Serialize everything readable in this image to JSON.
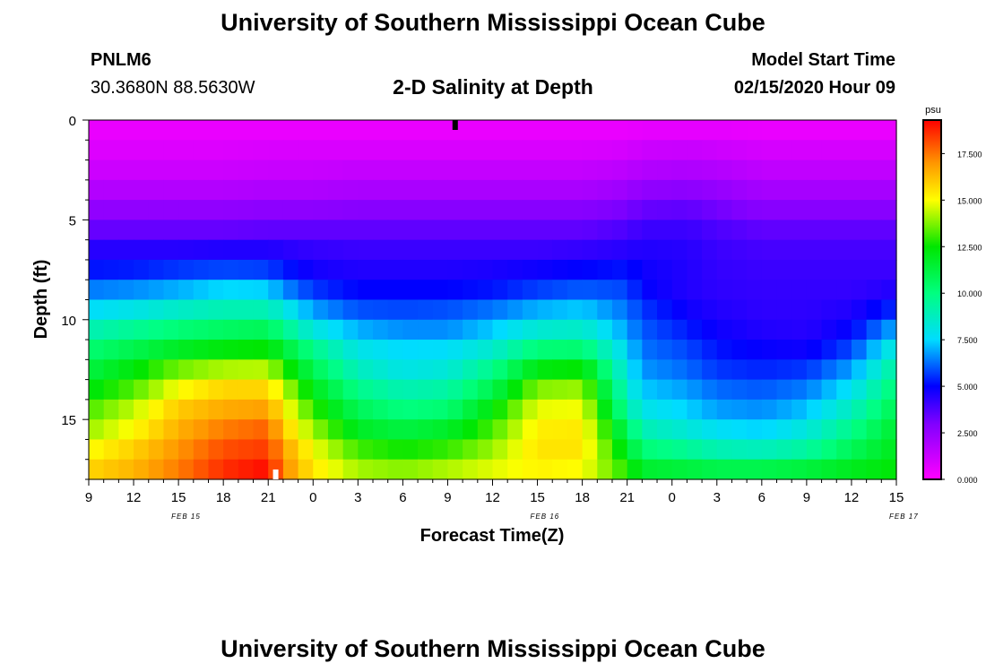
{
  "header": {
    "title": "University of Southern Mississippi Ocean Cube",
    "station_id": "PNLM6",
    "station_coords": "30.3680N 88.5630W",
    "subtitle": "2-D Salinity at Depth",
    "model_label": "Model Start Time",
    "model_time": "02/15/2020 Hour 09"
  },
  "footer": {
    "title": "University of Southern Mississippi Ocean Cube"
  },
  "chart_data": {
    "type": "heatmap",
    "xlabel": "Forecast Time(Z)",
    "ylabel": "Depth (ft)",
    "x_ticks": [
      "9",
      "12",
      "15",
      "18",
      "21",
      "0",
      "3",
      "6",
      "9",
      "12",
      "15",
      "18",
      "21",
      "0",
      "3",
      "6",
      "9",
      "12",
      "15"
    ],
    "date_labels": [
      {
        "text": "FEB 15",
        "hours_from_start": 6.5
      },
      {
        "text": "FEB 16",
        "hours_from_start": 30.5
      },
      {
        "text": "FEB 17",
        "hours_from_start": 54.5
      }
    ],
    "x_range_hours": [
      0,
      54
    ],
    "x_start": "02/15/2020 09Z",
    "y_ticks": [
      0,
      5,
      10,
      15
    ],
    "ylim": [
      0,
      18
    ],
    "colorbar": {
      "unit": "psu",
      "ticks": [
        "17.500",
        "15.000",
        "12.500",
        "10.000",
        "7.500",
        "5.000",
        "2.500",
        "0.000"
      ],
      "range": [
        0,
        19.3
      ]
    },
    "marker_top_hours": 24.5,
    "marker_bottom_hours": 12.5,
    "depth_levels_ft": [
      0.5,
      1.5,
      2.5,
      3.5,
      4.5,
      5.5,
      6.5,
      7.5,
      8.5,
      9.5,
      10.5,
      11.5,
      12.5,
      13.5,
      14.5,
      15.5,
      16.5,
      17.5
    ],
    "time_hours": [
      0,
      3,
      6,
      9,
      12,
      13,
      15,
      18,
      21,
      24,
      27,
      30,
      33,
      36,
      37,
      40,
      42,
      45,
      48,
      51,
      54
    ],
    "salinity_psu": [
      [
        0.5,
        0.5,
        0.5,
        0.5,
        0.5,
        0.5,
        0.5,
        0.5,
        0.5,
        0.5,
        0.5,
        0.5,
        0.5,
        0.5,
        0.6,
        0.6,
        0.6,
        0.5,
        0.5,
        0.5,
        0.5
      ],
      [
        0.8,
        0.8,
        0.8,
        0.8,
        0.9,
        0.9,
        0.9,
        0.9,
        0.9,
        0.9,
        0.9,
        0.9,
        0.9,
        1.0,
        1.2,
        1.3,
        1.2,
        1.0,
        1.0,
        1.0,
        1.0
      ],
      [
        1.2,
        1.2,
        1.2,
        1.2,
        1.3,
        1.3,
        1.3,
        1.4,
        1.4,
        1.4,
        1.4,
        1.4,
        1.4,
        1.6,
        1.8,
        1.9,
        1.8,
        1.5,
        1.5,
        1.5,
        1.5
      ],
      [
        1.8,
        1.8,
        1.8,
        1.8,
        1.9,
        1.9,
        1.9,
        2.0,
        2.0,
        2.0,
        2.0,
        2.0,
        2.0,
        2.3,
        2.6,
        2.7,
        2.5,
        2.1,
        2.1,
        2.1,
        2.1
      ],
      [
        2.6,
        2.6,
        2.6,
        2.6,
        2.7,
        2.7,
        2.7,
        2.8,
        2.8,
        2.8,
        2.8,
        2.8,
        2.8,
        3.1,
        3.4,
        3.5,
        3.2,
        2.8,
        2.8,
        2.8,
        2.8
      ],
      [
        3.4,
        3.4,
        3.4,
        3.4,
        3.5,
        3.5,
        3.5,
        3.5,
        3.5,
        3.5,
        3.5,
        3.5,
        3.5,
        3.8,
        4.1,
        4.1,
        3.8,
        3.5,
        3.5,
        3.5,
        3.5
      ],
      [
        4.4,
        4.4,
        4.4,
        4.5,
        4.5,
        4.4,
        4.2,
        4.1,
        4.1,
        4.1,
        4.1,
        4.1,
        4.2,
        4.4,
        4.5,
        4.4,
        4.1,
        3.9,
        3.9,
        3.9,
        3.9
      ],
      [
        5.2,
        5.3,
        5.6,
        5.8,
        5.7,
        5.3,
        4.7,
        4.5,
        4.5,
        4.5,
        4.6,
        4.8,
        5.0,
        5.2,
        4.8,
        4.5,
        4.2,
        4.1,
        4.1,
        4.1,
        4.1
      ],
      [
        6.4,
        6.6,
        7.0,
        7.5,
        7.4,
        6.6,
        5.6,
        5.0,
        5.0,
        5.0,
        5.2,
        5.7,
        6.0,
        5.8,
        5.0,
        4.5,
        4.3,
        4.2,
        4.2,
        4.2,
        4.5
      ],
      [
        7.6,
        8.0,
        8.6,
        9.0,
        9.0,
        8.2,
        6.8,
        5.9,
        5.8,
        5.9,
        6.3,
        7.0,
        7.3,
        6.3,
        5.6,
        4.8,
        4.5,
        4.3,
        4.3,
        4.5,
        5.5
      ],
      [
        9.0,
        9.6,
        10.2,
        10.6,
        10.8,
        9.8,
        8.2,
        7.0,
        6.6,
        6.6,
        7.3,
        8.4,
        8.6,
        6.8,
        6.0,
        5.3,
        4.8,
        4.5,
        4.4,
        5.0,
        7.0
      ],
      [
        10.3,
        11.0,
        11.8,
        12.3,
        12.5,
        11.5,
        9.8,
        8.0,
        7.5,
        7.6,
        8.5,
        10.2,
        10.3,
        7.5,
        6.3,
        5.8,
        5.2,
        4.9,
        4.8,
        5.8,
        8.4
      ],
      [
        11.2,
        12.3,
        13.6,
        14.2,
        14.3,
        13.0,
        10.9,
        8.8,
        8.0,
        8.3,
        9.8,
        12.2,
        12.5,
        8.0,
        6.7,
        6.2,
        5.6,
        5.4,
        5.6,
        6.8,
        9.5
      ],
      [
        12.2,
        13.3,
        15.0,
        15.8,
        15.8,
        14.4,
        12.0,
        9.8,
        9.0,
        9.3,
        11.0,
        13.8,
        14.0,
        8.6,
        7.3,
        6.8,
        6.2,
        6.0,
        6.4,
        7.8,
        10.3
      ],
      [
        13.2,
        14.4,
        16.0,
        16.6,
        16.8,
        15.3,
        13.0,
        10.8,
        10.0,
        10.3,
        12.3,
        14.8,
        14.9,
        9.4,
        8.0,
        7.4,
        6.8,
        6.6,
        7.2,
        8.8,
        11.0
      ],
      [
        14.0,
        15.1,
        16.5,
        17.4,
        17.8,
        16.0,
        14.0,
        11.8,
        11.2,
        11.7,
        13.2,
        15.3,
        15.4,
        10.7,
        9.0,
        8.3,
        7.7,
        7.4,
        8.2,
        9.8,
        11.6
      ],
      [
        15.0,
        15.9,
        17.0,
        18.1,
        18.4,
        16.8,
        14.9,
        13.1,
        12.6,
        13.0,
        14.0,
        15.5,
        15.5,
        11.8,
        10.2,
        9.6,
        9.0,
        8.8,
        9.4,
        10.8,
        12.0
      ],
      [
        15.8,
        16.4,
        17.4,
        18.6,
        19.1,
        17.2,
        15.4,
        14.1,
        13.8,
        14.2,
        14.7,
        15.2,
        15.0,
        12.8,
        11.6,
        11.3,
        11.0,
        11.0,
        11.3,
        11.9,
        12.4
      ]
    ]
  }
}
